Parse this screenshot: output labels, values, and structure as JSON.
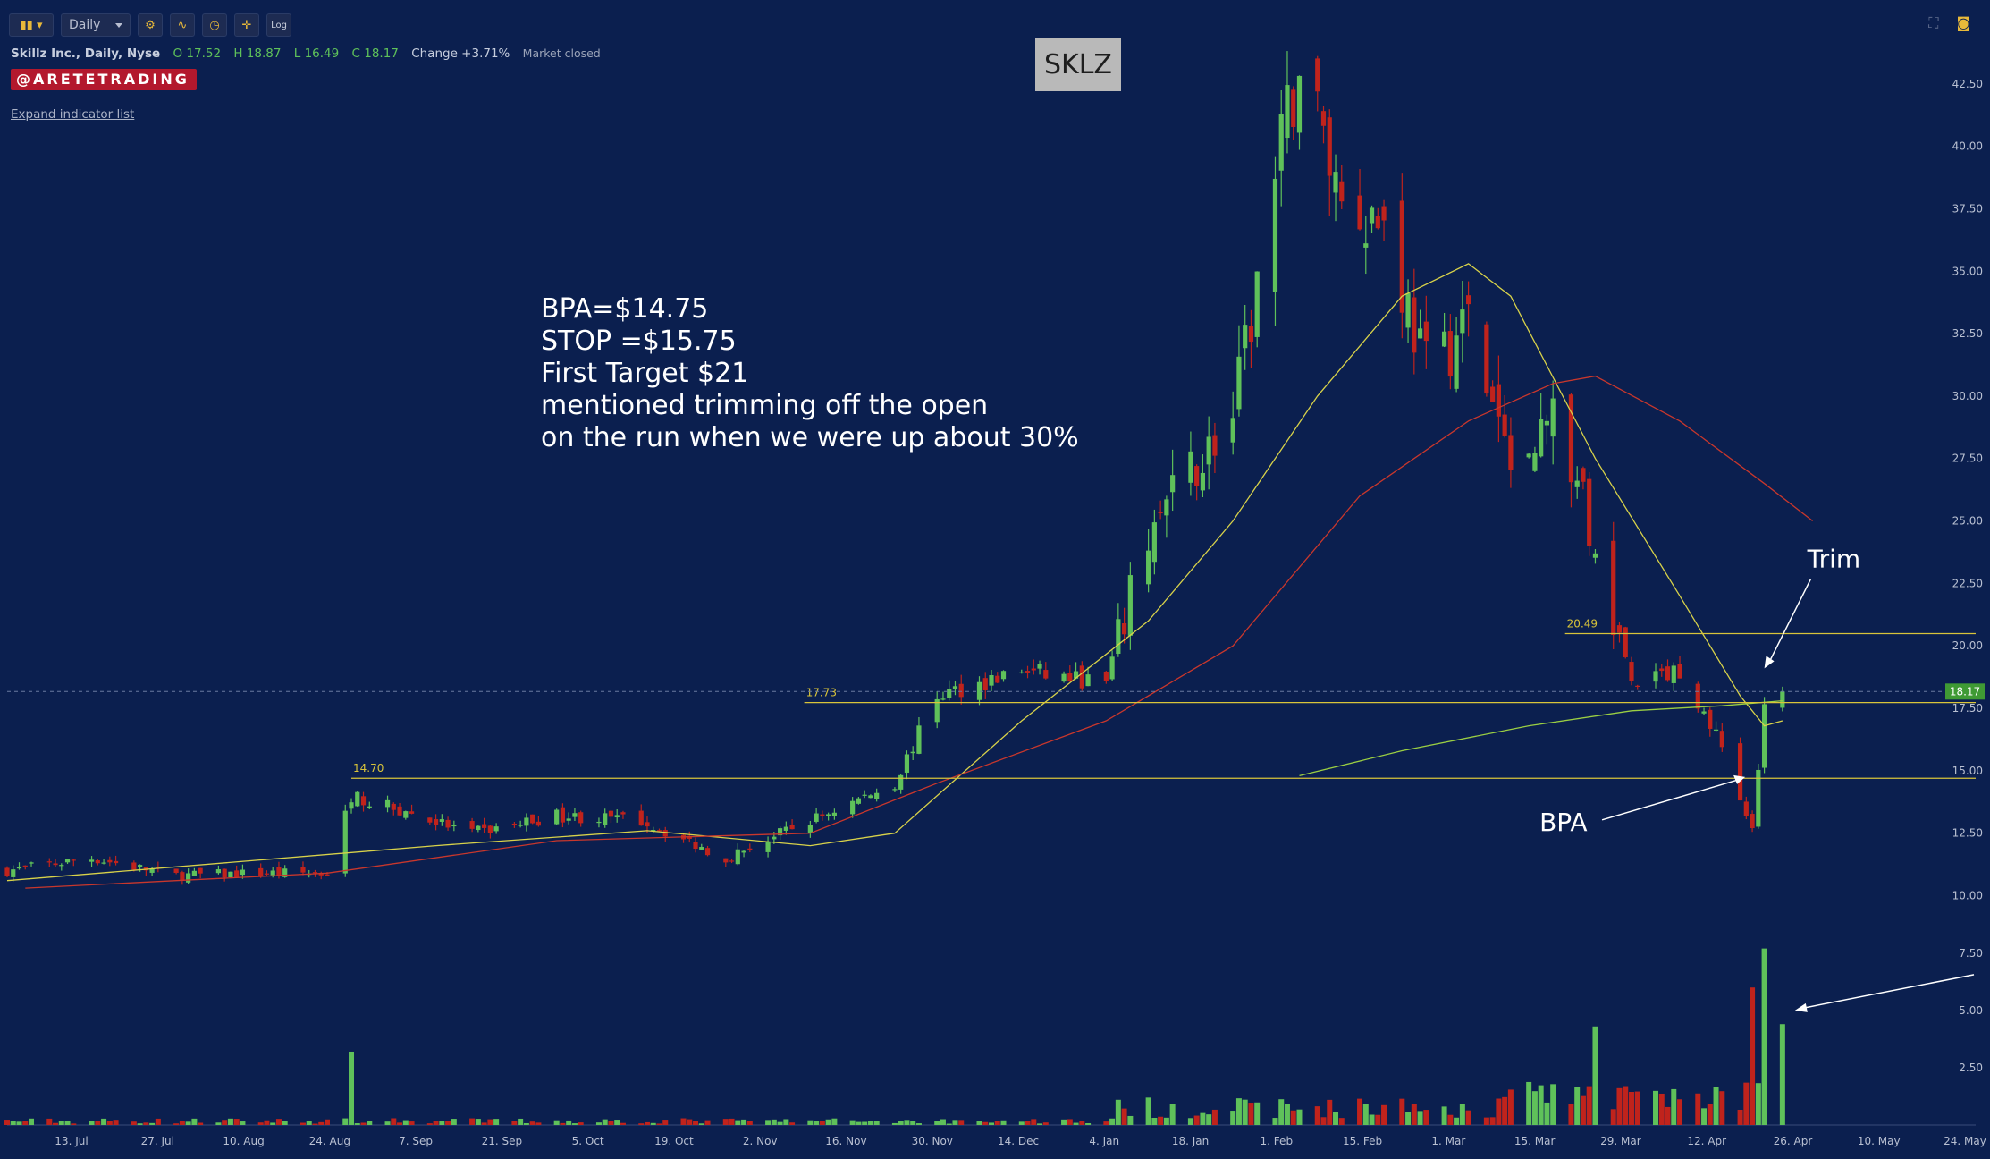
{
  "toolbar": {
    "bars_icon": "candlestick-bars-icon",
    "interval": "Daily",
    "log_label": "Log"
  },
  "header": {
    "symbol_line": "Skillz Inc., Daily, Nyse",
    "open": "O 17.52",
    "high": "H 18.87",
    "low": "L 16.49",
    "close": "C 18.17",
    "change": "Change +3.71%",
    "market_status": "Market closed",
    "watermark_badge": "@ARETETRADING",
    "expand_link": "Expand indicator list"
  },
  "ticker_label": "SKLZ",
  "trade_note": [
    "BPA=$14.75",
    "STOP =$15.75",
    "First Target $21",
    "mentioned trimming off the open",
    "on the run when we were up about 30%"
  ],
  "colors": {
    "background": "#0b1f4f",
    "up_candle": "#5fc15a",
    "down_candle": "#c0231c",
    "level_line": "#d9c43a",
    "ma_yellow": "#d8d24a",
    "ma_red": "#c9372c",
    "ma_green": "#9bcf43"
  },
  "chart_data": {
    "type": "candlestick",
    "title": "SKLZ",
    "price_axis": {
      "ylim": [
        8.8,
        45.5
      ],
      "ticks": [
        "10.00",
        "12.50",
        "15.00",
        "17.50",
        "20.00",
        "22.50",
        "25.00",
        "27.50",
        "30.00",
        "32.50",
        "35.00",
        "37.50",
        "40.00",
        "42.50"
      ]
    },
    "volume_axis": {
      "ticks": [
        "2.50",
        "5.00",
        "7.50"
      ]
    },
    "x_ticks": [
      "13. Jul",
      "27. Jul",
      "10. Aug",
      "24. Aug",
      "7. Sep",
      "21. Sep",
      "5. Oct",
      "19. Oct",
      "2. Nov",
      "16. Nov",
      "30. Nov",
      "14. Dec",
      "4. Jan",
      "18. Jan",
      "1. Feb",
      "15. Feb",
      "1. Mar",
      "15. Mar",
      "29. Mar",
      "12. Apr",
      "26. Apr",
      "10. May",
      "24. May"
    ],
    "x_range": [
      "2020-07-06",
      "2021-05-28"
    ],
    "last_price": "18.17",
    "levels": [
      {
        "label": "14.70",
        "value": 14.7,
        "from": "2020-09-01"
      },
      {
        "label": "17.73",
        "value": 17.73,
        "from": "2020-11-15"
      },
      {
        "label": "20.49",
        "value": 20.49,
        "from": "2021-03-21"
      }
    ],
    "annotations": [
      {
        "text": "Trim",
        "date": "2021-04-23",
        "price": 19.1
      },
      {
        "text": "BPA",
        "date": "2021-04-21",
        "price": 14.75
      }
    ],
    "closes": [
      {
        "date": "2020-07-06",
        "close": 11.0
      },
      {
        "date": "2020-07-20",
        "close": 11.5
      },
      {
        "date": "2020-08-03",
        "close": 10.8
      },
      {
        "date": "2020-08-17",
        "close": 10.9
      },
      {
        "date": "2020-08-28",
        "close": 10.9
      },
      {
        "date": "2020-09-01",
        "close": 14.0
      },
      {
        "date": "2020-09-21",
        "close": 12.5
      },
      {
        "date": "2020-10-05",
        "close": 13.2
      },
      {
        "date": "2020-10-19",
        "close": 13.0
      },
      {
        "date": "2020-11-02",
        "close": 11.5
      },
      {
        "date": "2020-11-16",
        "close": 13.0
      },
      {
        "date": "2020-11-30",
        "close": 14.5
      },
      {
        "date": "2020-12-07",
        "close": 18.0
      },
      {
        "date": "2020-12-21",
        "close": 19.0
      },
      {
        "date": "2021-01-04",
        "close": 18.5
      },
      {
        "date": "2021-01-11",
        "close": 24.5
      },
      {
        "date": "2021-01-18",
        "close": 27.0
      },
      {
        "date": "2021-01-25",
        "close": 29.0
      },
      {
        "date": "2021-02-01",
        "close": 38.5
      },
      {
        "date": "2021-02-05",
        "close": 43.5
      },
      {
        "date": "2021-02-12",
        "close": 38.0
      },
      {
        "date": "2021-02-19",
        "close": 37.0
      },
      {
        "date": "2021-02-26",
        "close": 31.0
      },
      {
        "date": "2021-03-05",
        "close": 33.0
      },
      {
        "date": "2021-03-12",
        "close": 27.0
      },
      {
        "date": "2021-03-19",
        "close": 29.5
      },
      {
        "date": "2021-03-26",
        "close": 24.0
      },
      {
        "date": "2021-04-01",
        "close": 18.5
      },
      {
        "date": "2021-04-09",
        "close": 19.0
      },
      {
        "date": "2021-04-16",
        "close": 16.0
      },
      {
        "date": "2021-04-21",
        "close": 12.5
      },
      {
        "date": "2021-04-23",
        "close": 17.52
      },
      {
        "date": "2021-04-26",
        "close": 18.17
      }
    ],
    "moving_averages": [
      {
        "color": "yellow",
        "points": [
          [
            "2020-07-06",
            10.6
          ],
          [
            "2020-09-15",
            12.0
          ],
          [
            "2020-10-20",
            12.6
          ],
          [
            "2020-11-16",
            12.0
          ],
          [
            "2020-11-30",
            12.5
          ],
          [
            "2020-12-21",
            17.0
          ],
          [
            "2021-01-11",
            21.0
          ],
          [
            "2021-01-25",
            25.0
          ],
          [
            "2021-02-08",
            30.0
          ],
          [
            "2021-02-22",
            34.0
          ],
          [
            "2021-03-05",
            35.3
          ],
          [
            "2021-03-12",
            34.0
          ],
          [
            "2021-03-26",
            27.5
          ],
          [
            "2021-04-09",
            22.0
          ],
          [
            "2021-04-19",
            18.0
          ],
          [
            "2021-04-23",
            16.8
          ],
          [
            "2021-04-26",
            17.0
          ]
        ]
      },
      {
        "color": "red",
        "points": [
          [
            "2020-07-09",
            10.3
          ],
          [
            "2020-08-28",
            10.9
          ],
          [
            "2020-10-05",
            12.2
          ],
          [
            "2020-11-16",
            12.5
          ],
          [
            "2020-12-07",
            14.5
          ],
          [
            "2021-01-04",
            17.0
          ],
          [
            "2021-01-25",
            20.0
          ],
          [
            "2021-02-15",
            26.0
          ],
          [
            "2021-03-05",
            29.0
          ],
          [
            "2021-03-19",
            30.5
          ],
          [
            "2021-03-26",
            30.8
          ],
          [
            "2021-04-09",
            29.0
          ],
          [
            "2021-04-23",
            26.5
          ],
          [
            "2021-05-01",
            25.0
          ]
        ]
      },
      {
        "color": "green",
        "points": [
          [
            "2021-02-05",
            14.8
          ],
          [
            "2021-02-22",
            15.8
          ],
          [
            "2021-03-15",
            16.8
          ],
          [
            "2021-04-01",
            17.4
          ],
          [
            "2021-04-16",
            17.6
          ],
          [
            "2021-04-26",
            17.8
          ]
        ]
      }
    ],
    "volume_highlights": [
      {
        "date": "2020-09-01",
        "volume": 3.2
      },
      {
        "date": "2021-03-26",
        "volume": 4.3
      },
      {
        "date": "2021-04-21",
        "volume": 6.0
      },
      {
        "date": "2021-04-23",
        "volume": 7.7
      },
      {
        "date": "2021-04-26",
        "volume": 4.4
      }
    ]
  }
}
